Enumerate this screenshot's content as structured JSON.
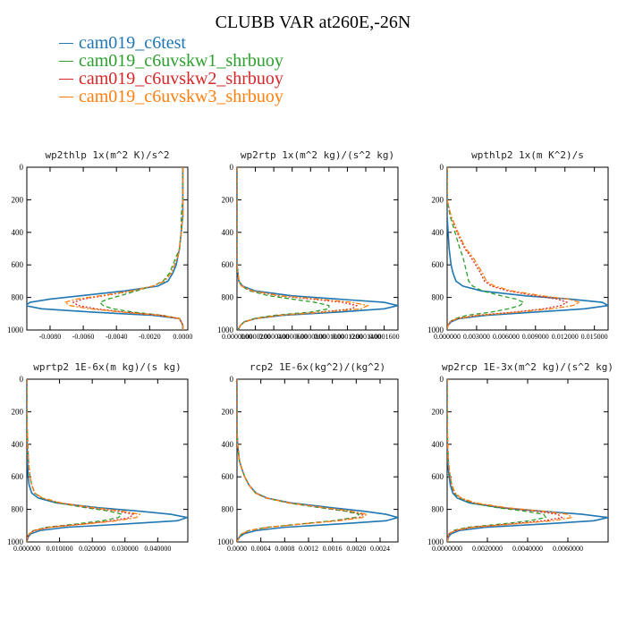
{
  "chart_data": {
    "type": "line",
    "title": "CLUBB VAR at260E,-26N",
    "legend": [
      {
        "label": "cam019_c6test",
        "color": "#1f77b4",
        "dash": "solid"
      },
      {
        "label": "cam019_c6uvskw1_shrbuoy",
        "color": "#2ca02c",
        "dash": "dashed"
      },
      {
        "label": "cam019_c6uvskw2_shrbuoy",
        "color": "#d62728",
        "dash": "dotted"
      },
      {
        "label": "cam019_c6uvskw3_shrbuoy",
        "color": "#ff7f0e",
        "dash": "dashdot"
      }
    ],
    "y": [
      0,
      100,
      200,
      300,
      400,
      500,
      550,
      600,
      650,
      700,
      730,
      760,
      790,
      810,
      830,
      850,
      870,
      890,
      910,
      930,
      950,
      970,
      990,
      1000
    ],
    "ylim": [
      1000,
      0
    ],
    "yticks": [
      "0",
      "200",
      "400",
      "600",
      "800",
      "1000"
    ],
    "panels": [
      {
        "title": "wp2thlp  1x(m^2 K)/s^2",
        "xlim": [
          -0.0094,
          0.0003
        ],
        "xticks": [
          {
            "v": -0.008,
            "label": "-0.0080"
          },
          {
            "v": -0.006,
            "label": "-0.0060"
          },
          {
            "v": -0.004,
            "label": "-0.0040"
          },
          {
            "v": -0.002,
            "label": "-0.0020"
          },
          {
            "v": 0.0,
            "label": "0.0000"
          }
        ],
        "series": [
          [
            0.0,
            0.0,
            0.0,
            0.0,
            -0.0001,
            -0.0002,
            -0.0003,
            -0.0004,
            -0.0006,
            -0.0009,
            -0.0015,
            -0.0035,
            -0.0062,
            -0.008,
            -0.0092,
            -0.0095,
            -0.0085,
            -0.0055,
            -0.0018,
            -0.0002,
            -0.0001,
            0.0,
            0.0,
            0.0
          ],
          [
            0.0,
            0.0,
            0.0,
            -0.0001,
            -0.0001,
            -0.0002,
            -0.0004,
            -0.0006,
            -0.0008,
            -0.0012,
            -0.0018,
            -0.0028,
            -0.0038,
            -0.0045,
            -0.005,
            -0.0048,
            -0.0042,
            -0.003,
            -0.0012,
            -0.0002,
            -0.0001,
            0.0,
            0.0,
            0.0
          ],
          [
            0.0,
            0.0,
            0.0,
            0.0,
            -0.0001,
            -0.0002,
            -0.0003,
            -0.0005,
            -0.0007,
            -0.0011,
            -0.0018,
            -0.003,
            -0.0048,
            -0.006,
            -0.0066,
            -0.0063,
            -0.0052,
            -0.0035,
            -0.0013,
            -0.0002,
            -0.0001,
            0.0,
            0.0,
            0.0
          ],
          [
            0.0,
            0.0,
            0.0,
            0.0,
            -0.0001,
            -0.0002,
            -0.0003,
            -0.0005,
            -0.0007,
            -0.0011,
            -0.0018,
            -0.0031,
            -0.005,
            -0.0064,
            -0.0071,
            -0.0068,
            -0.0056,
            -0.0037,
            -0.0014,
            -0.0002,
            -0.0001,
            0.0,
            0.0,
            0.0
          ]
        ]
      },
      {
        "title": "wp2rtp  1x(m^2 kg)/(s^2 kg)",
        "xlim": [
          0.0,
          0.000175
        ],
        "xticks": [
          {
            "v": 0.0,
            "label": "0.0000000"
          },
          {
            "v": 2e-05,
            "label": "0.0000200"
          },
          {
            "v": 4e-05,
            "label": "0.0000400"
          },
          {
            "v": 6e-05,
            "label": "0.0000600"
          },
          {
            "v": 8e-05,
            "label": "0.0000800"
          },
          {
            "v": 0.0001,
            "label": "0.0001000"
          },
          {
            "v": 0.00012,
            "label": "0.0001200"
          },
          {
            "v": 0.00014,
            "label": "0.0001400"
          },
          {
            "v": 0.00016,
            "label": "0.0001600"
          }
        ],
        "series": [
          [
            0.0,
            0.0,
            0.0,
            0.0,
            0.0,
            0.0,
            0.0,
            0.0,
            1e-06,
            2e-06,
            6e-06,
            2e-05,
            6e-05,
            0.00011,
            0.00016,
            0.000175,
            0.00016,
            0.00011,
            5e-05,
            2e-05,
            8e-06,
            4e-06,
            2e-06,
            1e-06
          ],
          [
            0.0,
            0.0,
            0.0,
            0.0,
            0.0,
            0.0,
            0.0,
            0.0,
            1e-06,
            2e-06,
            5e-06,
            1.4e-05,
            3.5e-05,
            6e-05,
            8.5e-05,
            0.0001,
            0.0001,
            8e-05,
            4e-05,
            1.8e-05,
            8e-06,
            4e-06,
            2e-06,
            1e-06
          ],
          [
            0.0,
            0.0,
            0.0,
            0.0,
            0.0,
            0.0,
            0.0,
            0.0,
            1e-06,
            2e-06,
            5e-06,
            1.6e-05,
            4.5e-05,
            8e-05,
            0.000115,
            0.00013,
            0.000125,
            9e-05,
            4.5e-05,
            2e-05,
            8e-06,
            4e-06,
            2e-06,
            1e-06
          ],
          [
            0.0,
            0.0,
            0.0,
            0.0,
            0.0,
            0.0,
            0.0,
            0.0,
            1e-06,
            2e-06,
            5e-06,
            1.7e-05,
            4.8e-05,
            8.8e-05,
            0.000125,
            0.000142,
            0.000135,
            9.5e-05,
            4.7e-05,
            2e-05,
            8e-06,
            4e-06,
            2e-06,
            1e-06
          ]
        ]
      },
      {
        "title": "wpthlp2  1x(m K^2)/s",
        "xlim": [
          0.0,
          0.0164
        ],
        "xticks": [
          {
            "v": 0.0,
            "label": "0.000000"
          },
          {
            "v": 0.003,
            "label": "0.003000"
          },
          {
            "v": 0.006,
            "label": "0.006000"
          },
          {
            "v": 0.009,
            "label": "0.009000"
          },
          {
            "v": 0.012,
            "label": "0.012000"
          },
          {
            "v": 0.015,
            "label": "0.015000"
          }
        ],
        "series": [
          [
            0.0,
            0.0,
            0.0,
            0.0,
            0.0001,
            0.0002,
            0.0003,
            0.0004,
            0.0006,
            0.0009,
            0.0016,
            0.0035,
            0.008,
            0.0125,
            0.0158,
            0.0164,
            0.014,
            0.009,
            0.004,
            0.0012,
            0.0004,
            0.0001,
            0.0,
            0.0
          ],
          [
            0.0,
            0.0,
            0.0,
            0.0003,
            0.0008,
            0.0013,
            0.0016,
            0.0018,
            0.002,
            0.0022,
            0.0026,
            0.0036,
            0.0055,
            0.007,
            0.0078,
            0.0074,
            0.0062,
            0.0045,
            0.002,
            0.0008,
            0.0003,
            0.0001,
            0.0,
            0.0
          ],
          [
            0.0,
            0.0,
            0.0,
            0.0004,
            0.001,
            0.0018,
            0.0024,
            0.0029,
            0.0034,
            0.0038,
            0.0045,
            0.0062,
            0.009,
            0.0112,
            0.0122,
            0.0116,
            0.0098,
            0.0068,
            0.003,
            0.001,
            0.0003,
            0.0001,
            0.0,
            0.0
          ],
          [
            0.0,
            0.0,
            0.0,
            0.0004,
            0.0011,
            0.0019,
            0.0026,
            0.0031,
            0.0036,
            0.004,
            0.0048,
            0.0066,
            0.0097,
            0.0123,
            0.0135,
            0.0128,
            0.0106,
            0.0073,
            0.0032,
            0.001,
            0.0003,
            0.0001,
            0.0,
            0.0
          ]
        ]
      },
      {
        "title": "wprtp2  1E-6x(m kg)/(s kg)",
        "xlim": [
          0.0,
          0.0492
        ],
        "xticks": [
          {
            "v": 0.0,
            "label": "0.000000"
          },
          {
            "v": 0.01,
            "label": "0.010000"
          },
          {
            "v": 0.02,
            "label": "0.020000"
          },
          {
            "v": 0.03,
            "label": "0.030000"
          },
          {
            "v": 0.04,
            "label": "0.040000"
          }
        ],
        "series": [
          [
            0.0,
            0.0,
            0.0,
            0.0,
            0.0001,
            0.0002,
            0.0003,
            0.0004,
            0.0007,
            0.0015,
            0.0035,
            0.009,
            0.022,
            0.034,
            0.044,
            0.049,
            0.046,
            0.03,
            0.012,
            0.004,
            0.0012,
            0.0004,
            0.0001,
            0.0
          ],
          [
            0.0,
            0.0,
            0.0,
            0.0001,
            0.0003,
            0.0005,
            0.0007,
            0.001,
            0.0015,
            0.0024,
            0.0045,
            0.0095,
            0.018,
            0.025,
            0.029,
            0.028,
            0.023,
            0.015,
            0.006,
            0.002,
            0.0007,
            0.0002,
            0.0,
            0.0
          ],
          [
            0.0,
            0.0,
            0.0,
            0.0001,
            0.0003,
            0.0005,
            0.0007,
            0.001,
            0.0015,
            0.0024,
            0.0046,
            0.01,
            0.0195,
            0.0275,
            0.0325,
            0.0315,
            0.026,
            0.017,
            0.0068,
            0.0022,
            0.0007,
            0.0002,
            0.0,
            0.0
          ],
          [
            0.0,
            0.0,
            0.0,
            0.0001,
            0.0003,
            0.0005,
            0.0007,
            0.001,
            0.0015,
            0.0025,
            0.0048,
            0.0105,
            0.0205,
            0.029,
            0.0345,
            0.0335,
            0.0275,
            0.018,
            0.0072,
            0.0023,
            0.0007,
            0.0002,
            0.0,
            0.0
          ]
        ]
      },
      {
        "title": "rcp2  1E-6x(kg^2)/(kg^2)",
        "xlim": [
          0.0,
          0.0027
        ],
        "xticks": [
          {
            "v": 0.0,
            "label": "0.0000"
          },
          {
            "v": 0.0004,
            "label": "0.0004"
          },
          {
            "v": 0.0008,
            "label": "0.0008"
          },
          {
            "v": 0.0012,
            "label": "0.0012"
          },
          {
            "v": 0.0016,
            "label": "0.0016"
          },
          {
            "v": 0.002,
            "label": "0.0020"
          },
          {
            "v": 0.0024,
            "label": "0.0024"
          }
        ],
        "series": [
          [
            0.0,
            0.0,
            0.0,
            0.0,
            1e-05,
            4e-05,
            8e-05,
            0.00013,
            0.0002,
            0.00032,
            0.0005,
            0.0009,
            0.0016,
            0.0021,
            0.0025,
            0.0027,
            0.0025,
            0.0017,
            0.0008,
            0.00032,
            0.00012,
            4e-05,
            1e-05,
            0.0
          ],
          [
            0.0,
            0.0,
            0.0,
            0.0,
            1e-05,
            4e-05,
            8e-05,
            0.00013,
            0.0002,
            0.00031,
            0.00048,
            0.00085,
            0.0014,
            0.0018,
            0.00205,
            0.00198,
            0.0016,
            0.00105,
            0.0005,
            0.0002,
            8e-05,
            3e-05,
            1e-05,
            0.0
          ],
          [
            0.0,
            0.0,
            0.0,
            0.0,
            1e-05,
            4e-05,
            8e-05,
            0.00013,
            0.0002,
            0.00031,
            0.00049,
            0.00087,
            0.00145,
            0.00186,
            0.00212,
            0.00205,
            0.00166,
            0.00108,
            0.00052,
            0.00021,
            8e-05,
            3e-05,
            1e-05,
            0.0
          ],
          [
            0.0,
            0.0,
            0.0,
            0.0,
            1e-05,
            4e-05,
            8e-05,
            0.00013,
            0.0002,
            0.00031,
            0.00049,
            0.00088,
            0.00148,
            0.0019,
            0.00218,
            0.0021,
            0.0017,
            0.0011,
            0.00053,
            0.00021,
            8e-05,
            3e-05,
            1e-05,
            0.0
          ]
        ]
      },
      {
        "title": "wp2rcp  1E-3x(m^2 kg)/(s^2 kg)",
        "xlim": [
          0.0,
          0.008
        ],
        "xticks": [
          {
            "v": 0.0,
            "label": "0.0000000"
          },
          {
            "v": 0.002,
            "label": "0.0020000"
          },
          {
            "v": 0.004,
            "label": "0.0040000"
          },
          {
            "v": 0.006,
            "label": "0.0060000"
          }
        ],
        "series": [
          [
            0.0,
            0.0,
            0.0,
            0.0,
            1e-05,
            3e-05,
            6e-05,
            0.0001,
            0.00016,
            0.00028,
            0.0005,
            0.0011,
            0.0027,
            0.0046,
            0.0067,
            0.008,
            0.0073,
            0.0048,
            0.0019,
            0.0006,
            0.0002,
            6e-05,
            2e-05,
            0.0
          ],
          [
            0.0,
            0.0,
            0.0,
            1e-05,
            3e-05,
            6e-05,
            0.0001,
            0.00015,
            0.00022,
            0.00035,
            0.0006,
            0.0012,
            0.0025,
            0.0038,
            0.0048,
            0.0049,
            0.0041,
            0.0027,
            0.001,
            0.0003,
            0.0001,
            3e-05,
            1e-05,
            0.0
          ],
          [
            0.0,
            0.0,
            0.0,
            1e-05,
            3e-05,
            6e-05,
            0.0001,
            0.00015,
            0.00023,
            0.00037,
            0.00065,
            0.0013,
            0.0028,
            0.0043,
            0.0055,
            0.0057,
            0.0048,
            0.0031,
            0.0012,
            0.0004,
            0.0001,
            3e-05,
            1e-05,
            0.0
          ],
          [
            0.0,
            0.0,
            0.0,
            1e-05,
            3e-05,
            6e-05,
            0.0001,
            0.00016,
            0.00024,
            0.0004,
            0.0007,
            0.0014,
            0.003,
            0.0047,
            0.006,
            0.0062,
            0.0052,
            0.0033,
            0.0013,
            0.0004,
            0.0001,
            3e-05,
            1e-05,
            0.0
          ]
        ]
      }
    ]
  }
}
